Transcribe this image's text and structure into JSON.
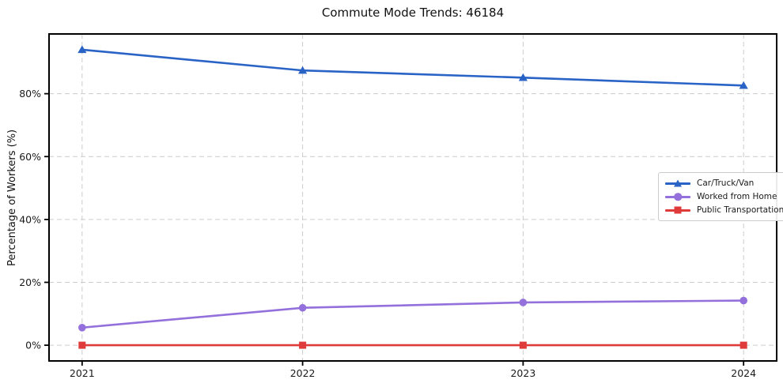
{
  "chart": {
    "title": "Commute Mode Trends: 46184",
    "ylabel": "Percentage of Workers (%)"
  },
  "chart_data": {
    "type": "line",
    "title": "Commute Mode Trends: 46184",
    "xlabel": "",
    "ylabel": "Percentage of Workers (%)",
    "categories": [
      "2021",
      "2022",
      "2023",
      "2024"
    ],
    "x": [
      2021,
      2022,
      2023,
      2024
    ],
    "series": [
      {
        "name": "Car/Truck/Van",
        "values": [
          94.0,
          87.4,
          85.1,
          82.6
        ],
        "color": "#2a63c6",
        "marker": "triangle"
      },
      {
        "name": "Worked from Home",
        "values": [
          5.6,
          11.9,
          13.6,
          14.2
        ],
        "color": "#9370db",
        "marker": "circle"
      },
      {
        "name": "Public Transportation",
        "values": [
          0.0,
          0.0,
          0.0,
          0.0
        ],
        "color": "#e03b3b",
        "marker": "square"
      }
    ],
    "xlim": [
      2020.85,
      2024.15
    ],
    "ylim": [
      -5,
      99
    ],
    "yticks": [
      0,
      20,
      40,
      60,
      80
    ],
    "yticklabels": [
      "0%",
      "20%",
      "40%",
      "60%",
      "80%"
    ],
    "grid": true,
    "grid_style": "dashed",
    "legend_position": "center right"
  },
  "colors": {
    "grid": "#cccccc",
    "axis": "#000000",
    "background": "#ffffff",
    "legend_border": "#cccccc",
    "text": "#1a1a1a"
  }
}
